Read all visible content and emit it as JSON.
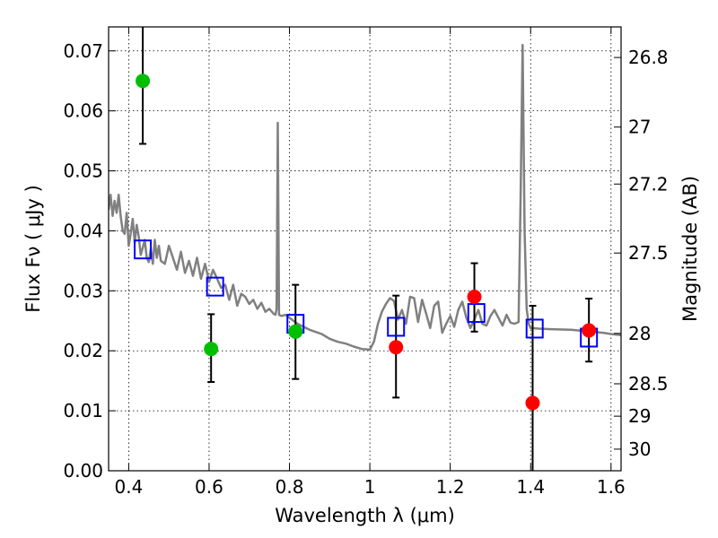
{
  "chart_data": {
    "type": "scatter",
    "xlabel": "Wavelength  λ (μm)",
    "ylabel": "Flux  Fν  ( μJy )",
    "ylabel_right": "Magnitude (AB)",
    "xlim": [
      0.35,
      1.625
    ],
    "ylim": [
      0,
      0.074
    ],
    "grid": true,
    "x_ticks": [
      0.4,
      0.6,
      0.8,
      1.0,
      1.2,
      1.4,
      1.6
    ],
    "x_tick_labels": [
      "0.4",
      "0.6",
      "0.8",
      "1",
      "1.2",
      "1.4",
      "1.6"
    ],
    "y_ticks": [
      0.0,
      0.01,
      0.02,
      0.03,
      0.04,
      0.05,
      0.06,
      0.07
    ],
    "y_tick_labels": [
      "0.00",
      "0.01",
      "0.02",
      "0.03",
      "0.04",
      "0.05",
      "0.06",
      "0.07"
    ],
    "right_axis": {
      "ticks": [
        {
          "label": "26.8",
          "flux": 0.0689
        },
        {
          "label": "27",
          "flux": 0.0573
        },
        {
          "label": "27.2",
          "flux": 0.0478
        },
        {
          "label": "27.5",
          "flux": 0.0363
        },
        {
          "label": "28",
          "flux": 0.0229
        },
        {
          "label": "28.5",
          "flux": 0.0145
        },
        {
          "label": "29",
          "flux": 0.0091
        },
        {
          "label": "30",
          "flux": 0.0036
        }
      ]
    },
    "series": [
      {
        "type": "line",
        "color": "#808080",
        "x": [
          0.35,
          0.355,
          0.36,
          0.365,
          0.37,
          0.375,
          0.38,
          0.385,
          0.39,
          0.395,
          0.4,
          0.405,
          0.41,
          0.415,
          0.42,
          0.425,
          0.43,
          0.435,
          0.44,
          0.445,
          0.45,
          0.455,
          0.46,
          0.465,
          0.47,
          0.475,
          0.48,
          0.49,
          0.5,
          0.51,
          0.52,
          0.53,
          0.54,
          0.55,
          0.56,
          0.57,
          0.58,
          0.59,
          0.6,
          0.61,
          0.62,
          0.63,
          0.64,
          0.65,
          0.66,
          0.67,
          0.68,
          0.69,
          0.7,
          0.71,
          0.72,
          0.73,
          0.74,
          0.75,
          0.76,
          0.765,
          0.768,
          0.771,
          0.774,
          0.78,
          0.79,
          0.8,
          0.82,
          0.85,
          0.88,
          0.9,
          0.92,
          0.94,
          0.96,
          0.98,
          1.0,
          1.01,
          1.02,
          1.03,
          1.04,
          1.05,
          1.06,
          1.07,
          1.08,
          1.09,
          1.1,
          1.11,
          1.12,
          1.13,
          1.14,
          1.15,
          1.16,
          1.17,
          1.18,
          1.19,
          1.2,
          1.21,
          1.22,
          1.23,
          1.24,
          1.25,
          1.26,
          1.27,
          1.28,
          1.29,
          1.3,
          1.31,
          1.32,
          1.33,
          1.34,
          1.35,
          1.36,
          1.37,
          1.375,
          1.38,
          1.385,
          1.39,
          1.395,
          1.4,
          1.42,
          1.45,
          1.5,
          1.55,
          1.58,
          1.6,
          1.625
        ],
        "y": [
          0.0435,
          0.046,
          0.0425,
          0.045,
          0.043,
          0.046,
          0.0425,
          0.04,
          0.0395,
          0.043,
          0.0375,
          0.0395,
          0.042,
          0.038,
          0.041,
          0.039,
          0.036,
          0.0372,
          0.0385,
          0.0355,
          0.0348,
          0.037,
          0.0345,
          0.0385,
          0.0355,
          0.0375,
          0.035,
          0.0345,
          0.0375,
          0.0355,
          0.0335,
          0.0365,
          0.033,
          0.035,
          0.0325,
          0.0355,
          0.032,
          0.0345,
          0.0315,
          0.0335,
          0.032,
          0.0305,
          0.031,
          0.0285,
          0.031,
          0.0275,
          0.0295,
          0.029,
          0.0278,
          0.0285,
          0.027,
          0.028,
          0.0265,
          0.027,
          0.0262,
          0.026,
          0.027,
          0.058,
          0.026,
          0.0258,
          0.026,
          0.0255,
          0.0245,
          0.0235,
          0.0228,
          0.022,
          0.0215,
          0.0212,
          0.0207,
          0.0203,
          0.0202,
          0.0215,
          0.0245,
          0.0265,
          0.0278,
          0.0288,
          0.0283,
          0.0252,
          0.0268,
          0.0245,
          0.029,
          0.0288,
          0.0248,
          0.0285,
          0.0262,
          0.0238,
          0.0275,
          0.0282,
          0.023,
          0.0245,
          0.0258,
          0.024,
          0.0268,
          0.0282,
          0.0255,
          0.0238,
          0.0252,
          0.0268,
          0.0245,
          0.0242,
          0.0258,
          0.0268,
          0.0255,
          0.0242,
          0.026,
          0.0247,
          0.0245,
          0.0248,
          0.045,
          0.071,
          0.04,
          0.027,
          0.0245,
          0.0238,
          0.0237,
          0.0236,
          0.0235,
          0.0232,
          0.023,
          0.0228,
          0.0226
        ]
      },
      {
        "type": "scatter",
        "marker": "square",
        "color": "#0000ff",
        "x": [
          0.435,
          0.615,
          0.815,
          1.065,
          1.265,
          1.41,
          1.545
        ],
        "y": [
          0.0369,
          0.0307,
          0.0245,
          0.024,
          0.0263,
          0.0237,
          0.0222
        ]
      },
      {
        "type": "scatter",
        "marker": "circle",
        "color": "#00bf00",
        "x": [
          0.435,
          0.605,
          0.815
        ],
        "y": [
          0.065,
          0.0203,
          0.0232
        ],
        "yerr_low": [
          0.0545,
          0.0148,
          0.0153
        ],
        "yerr_high": [
          0.0742,
          0.0261,
          0.031
        ]
      },
      {
        "type": "scatter",
        "marker": "circle",
        "color": "#ff0000",
        "x": [
          1.065,
          1.26,
          1.405,
          1.545
        ],
        "y": [
          0.0206,
          0.029,
          0.0113,
          0.0234
        ],
        "yerr_low": [
          0.0122,
          0.0232,
          0.0,
          0.0182
        ],
        "yerr_high": [
          0.0292,
          0.0346,
          0.0275,
          0.0287
        ]
      }
    ]
  }
}
